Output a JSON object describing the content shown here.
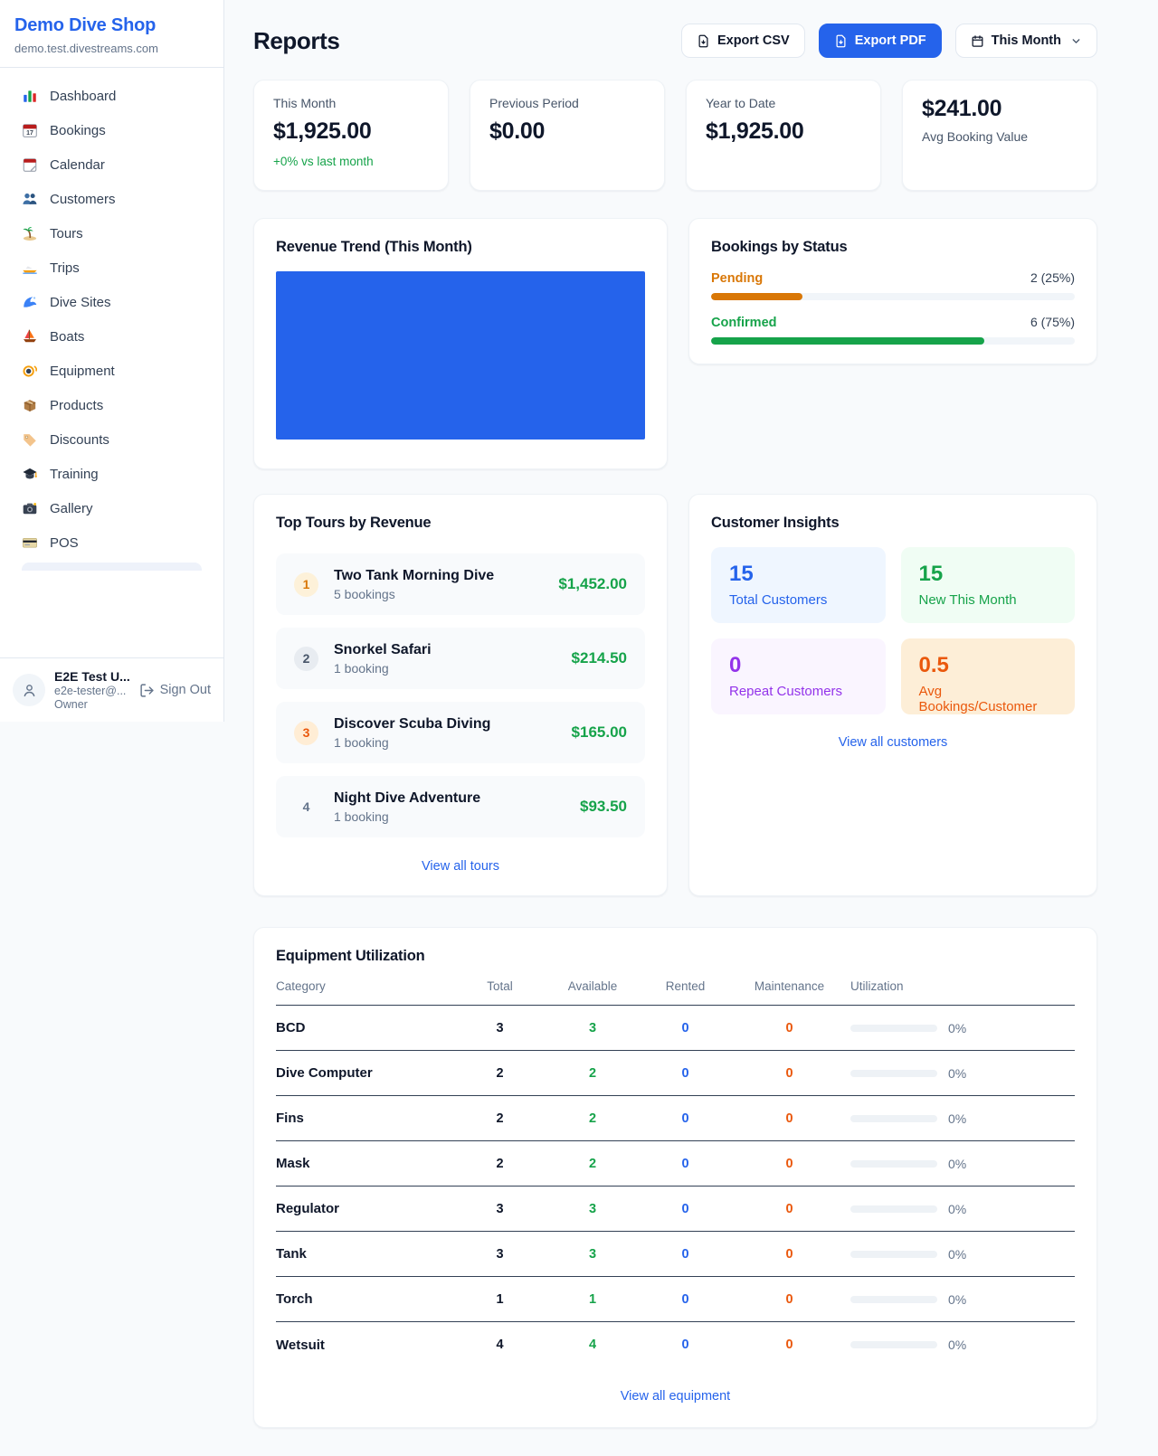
{
  "colors": {
    "primary": "#2563eb",
    "green": "#16a34a",
    "pending_orange": "#d97706",
    "maintenance_orange": "#ea580c",
    "link_blue": "#2563eb"
  },
  "sidebar": {
    "brand": {
      "name": "Demo Dive Shop",
      "domain": "demo.test.divestreams.com"
    },
    "items": [
      {
        "icon": "bar-chart-icon",
        "label": "Dashboard"
      },
      {
        "icon": "calendar-date-icon",
        "label": "Bookings"
      },
      {
        "icon": "tear-calendar-icon",
        "label": "Calendar"
      },
      {
        "icon": "users-icon",
        "label": "Customers"
      },
      {
        "icon": "island-icon",
        "label": "Tours"
      },
      {
        "icon": "speedboat-icon",
        "label": "Trips"
      },
      {
        "icon": "wave-icon",
        "label": "Dive Sites"
      },
      {
        "icon": "sailboat-icon",
        "label": "Boats"
      },
      {
        "icon": "dive-mask-icon",
        "label": "Equipment"
      },
      {
        "icon": "package-icon",
        "label": "Products"
      },
      {
        "icon": "tag-icon",
        "label": "Discounts"
      },
      {
        "icon": "graduation-cap-icon",
        "label": "Training"
      },
      {
        "icon": "camera-icon",
        "label": "Gallery"
      },
      {
        "icon": "credit-card-icon",
        "label": "POS"
      }
    ],
    "user": {
      "name": "E2E Test U...",
      "email": "e2e-tester@...",
      "role": "Owner",
      "sign_out": "Sign Out"
    }
  },
  "header": {
    "title": "Reports",
    "export_csv": "Export CSV",
    "export_pdf": "Export PDF",
    "period": "This Month"
  },
  "stats": [
    {
      "label": "This Month",
      "value": "$1,925.00",
      "delta": "+0% vs last month"
    },
    {
      "label": "Previous Period",
      "value": "$0.00"
    },
    {
      "label": "Year to Date",
      "value": "$1,925.00"
    },
    {
      "value": "$241.00",
      "label": "Avg Booking Value"
    }
  ],
  "revenue_trend": {
    "title": "Revenue Trend (This Month)",
    "chart": {
      "type": "bar",
      "color": "#2563eb",
      "note": "single solid full-area bar, no axes or labels visible"
    }
  },
  "bookings_by_status": {
    "title": "Bookings by Status",
    "rows": [
      {
        "label": "Pending",
        "value": "2 (25%)",
        "pct": 25,
        "color": "#d97706"
      },
      {
        "label": "Confirmed",
        "value": "6 (75%)",
        "pct": 75,
        "color": "#16a34a"
      }
    ]
  },
  "top_tours": {
    "title": "Top Tours by Revenue",
    "rows": [
      {
        "rank": "1",
        "rank_bg": "#fdf1d9",
        "rank_color": "#d97706",
        "name": "Two Tank Morning Dive",
        "sub": "5 bookings",
        "price": "$1,452.00"
      },
      {
        "rank": "2",
        "rank_bg": "#e8ecf1",
        "rank_color": "#475569",
        "name": "Snorkel Safari",
        "sub": "1 booking",
        "price": "$214.50"
      },
      {
        "rank": "3",
        "rank_bg": "#ffedd5",
        "rank_color": "#ea580c",
        "name": "Discover Scuba Diving",
        "sub": "1 booking",
        "price": "$165.00"
      },
      {
        "rank": "4",
        "rank_bg": "transparent",
        "rank_color": "#64748b",
        "name": "Night Dive Adventure",
        "sub": "1 booking",
        "price": "$93.50"
      }
    ],
    "view_all": "View all tours"
  },
  "customer_insights": {
    "title": "Customer Insights",
    "tiles": [
      {
        "value": "15",
        "label": "Total Customers",
        "color": "#2563eb",
        "bg": "#eff6ff"
      },
      {
        "value": "15",
        "label": "New This Month",
        "color": "#16a34a",
        "bg": "#f0fdf4"
      },
      {
        "value": "0",
        "label": "Repeat Customers",
        "color": "#9333ea",
        "bg": "#faf5ff"
      },
      {
        "value": "0.5",
        "label": "Avg Bookings/Customer",
        "color": "#ea580c",
        "bg": "#fdeed7"
      }
    ],
    "view_all": "View all customers"
  },
  "equipment": {
    "title": "Equipment Utilization",
    "columns": [
      "Category",
      "Total",
      "Available",
      "Rented",
      "Maintenance",
      "Utilization"
    ],
    "value_colors": {
      "total": "#0f172a",
      "available": "#16a34a",
      "rented": "#2563eb",
      "maintenance": "#ea580c"
    },
    "rows": [
      {
        "category": "BCD",
        "total": "3",
        "available": "3",
        "rented": "0",
        "maintenance": "0",
        "utilization": "0%",
        "util_pct": 0
      },
      {
        "category": "Dive Computer",
        "total": "2",
        "available": "2",
        "rented": "0",
        "maintenance": "0",
        "utilization": "0%",
        "util_pct": 0
      },
      {
        "category": "Fins",
        "total": "2",
        "available": "2",
        "rented": "0",
        "maintenance": "0",
        "utilization": "0%",
        "util_pct": 0
      },
      {
        "category": "Mask",
        "total": "2",
        "available": "2",
        "rented": "0",
        "maintenance": "0",
        "utilization": "0%",
        "util_pct": 0
      },
      {
        "category": "Regulator",
        "total": "3",
        "available": "3",
        "rented": "0",
        "maintenance": "0",
        "utilization": "0%",
        "util_pct": 0
      },
      {
        "category": "Tank",
        "total": "3",
        "available": "3",
        "rented": "0",
        "maintenance": "0",
        "utilization": "0%",
        "util_pct": 0
      },
      {
        "category": "Torch",
        "total": "1",
        "available": "1",
        "rented": "0",
        "maintenance": "0",
        "utilization": "0%",
        "util_pct": 0
      },
      {
        "category": "Wetsuit",
        "total": "4",
        "available": "4",
        "rented": "0",
        "maintenance": "0",
        "utilization": "0%",
        "util_pct": 0
      }
    ],
    "view_all": "View all equipment"
  }
}
